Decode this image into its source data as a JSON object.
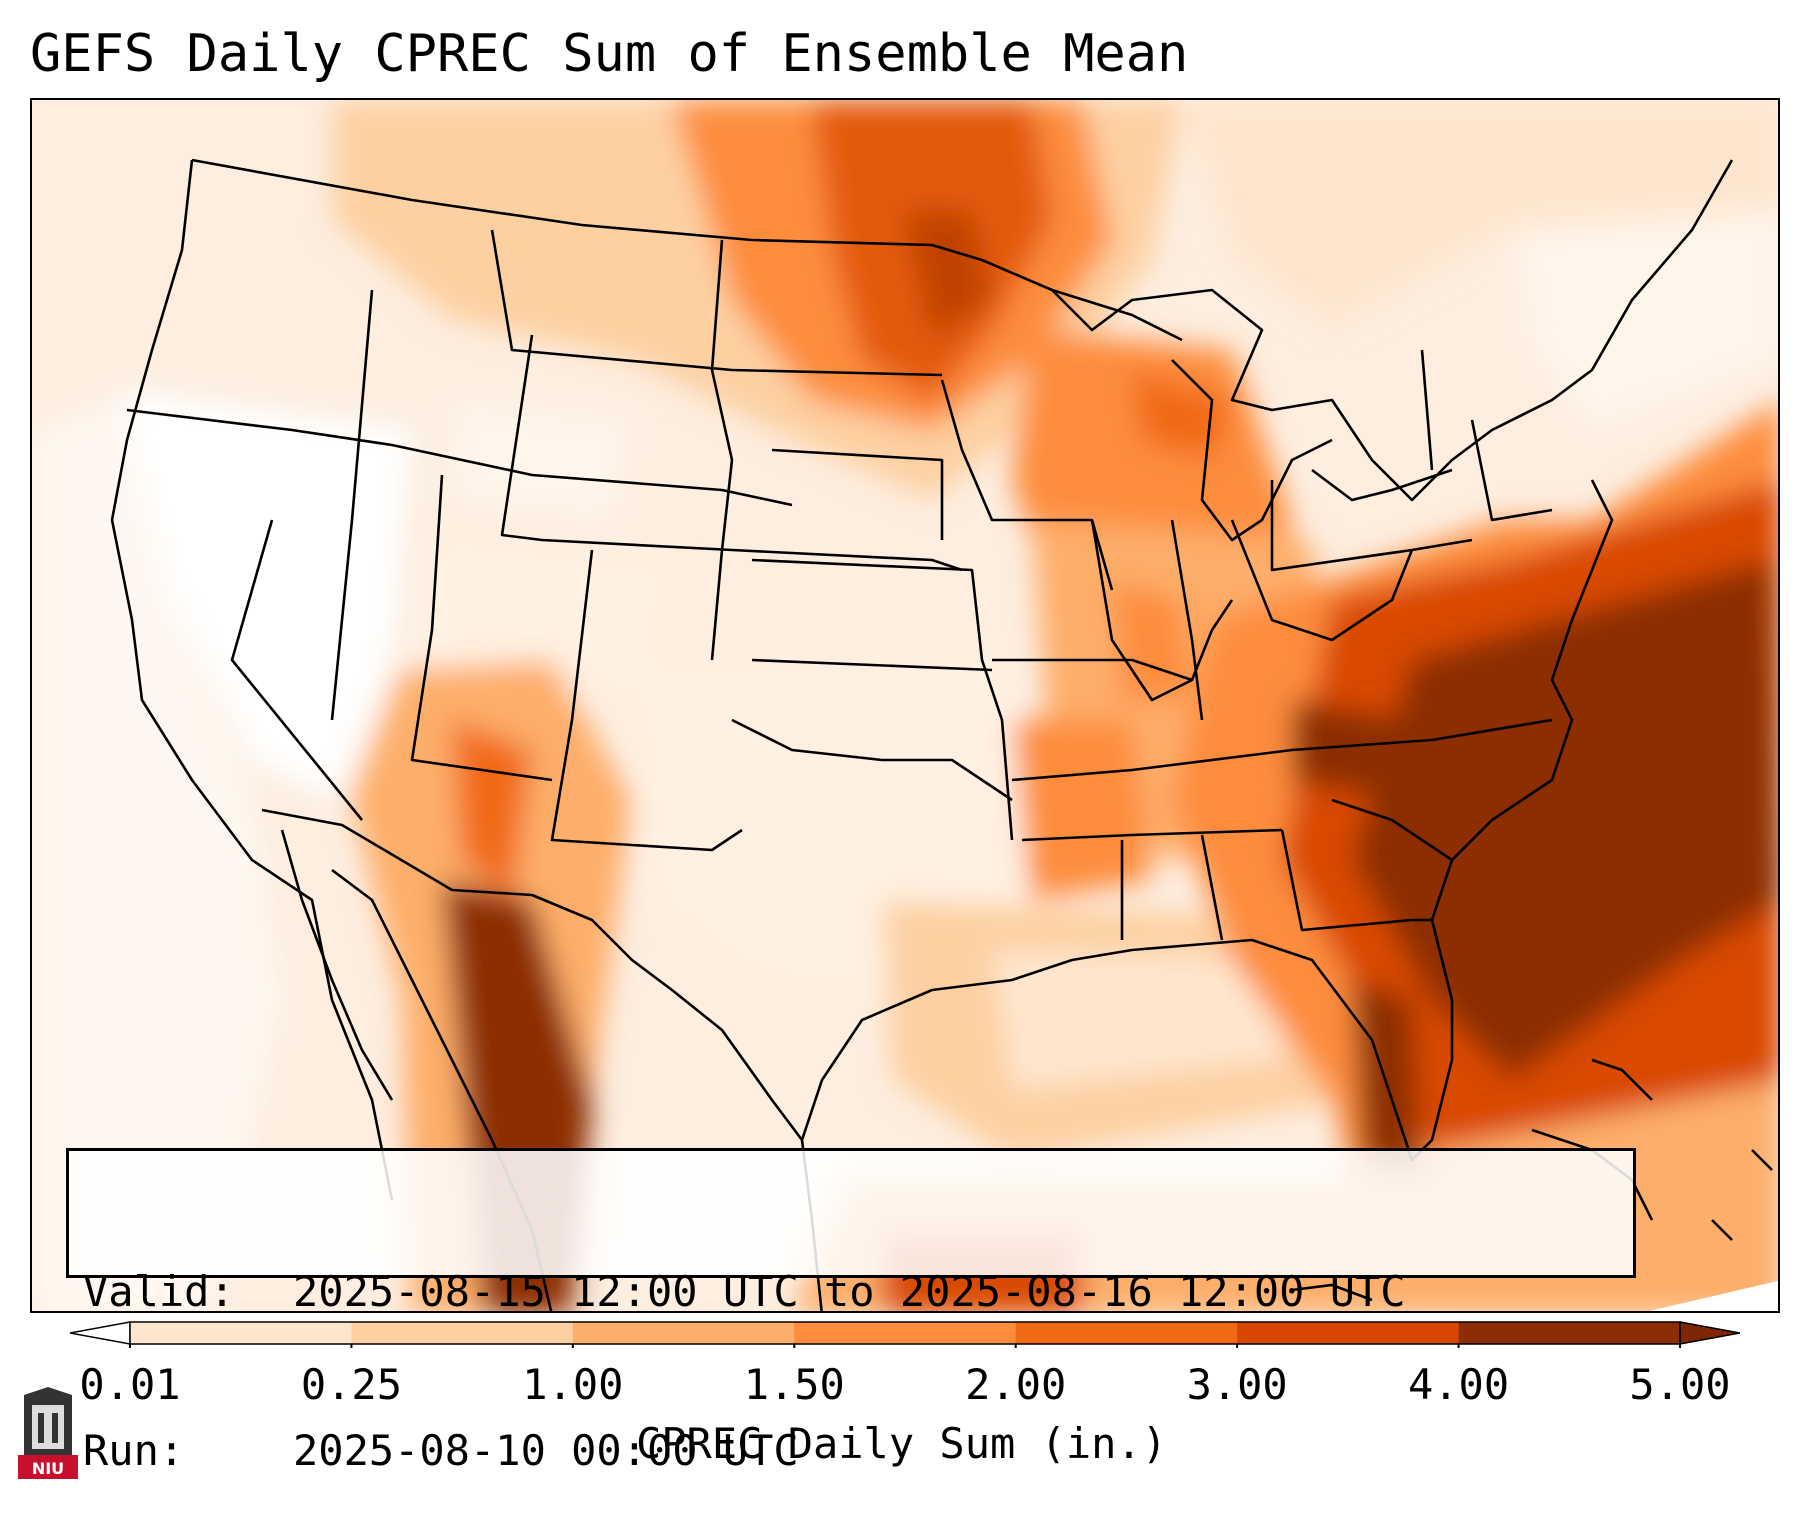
{
  "title": "GEFS Daily CPREC Sum of Ensemble Mean",
  "info": {
    "valid_key": "Valid:",
    "valid_value": "2025-08-15 12:00 UTC to 2025-08-16 12:00 UTC",
    "run_key": "Run:",
    "run_value": "2025-08-10 00:00 UTC"
  },
  "colorbar": {
    "label": "CPREC Daily Sum (in.)",
    "ticks": [
      "0.01",
      "0.25",
      "1.00",
      "1.50",
      "2.00",
      "3.00",
      "4.00",
      "5.00"
    ],
    "colors": [
      "#fff5eb",
      "#fee6ce",
      "#fdd0a2",
      "#fdae6b",
      "#fd8d3c",
      "#f16913",
      "#d94801",
      "#8c2d04"
    ],
    "under_color": "#ffffff",
    "over_color": "#7f2704"
  },
  "logo": {
    "text": "NIU",
    "color": "#c8102e"
  }
}
